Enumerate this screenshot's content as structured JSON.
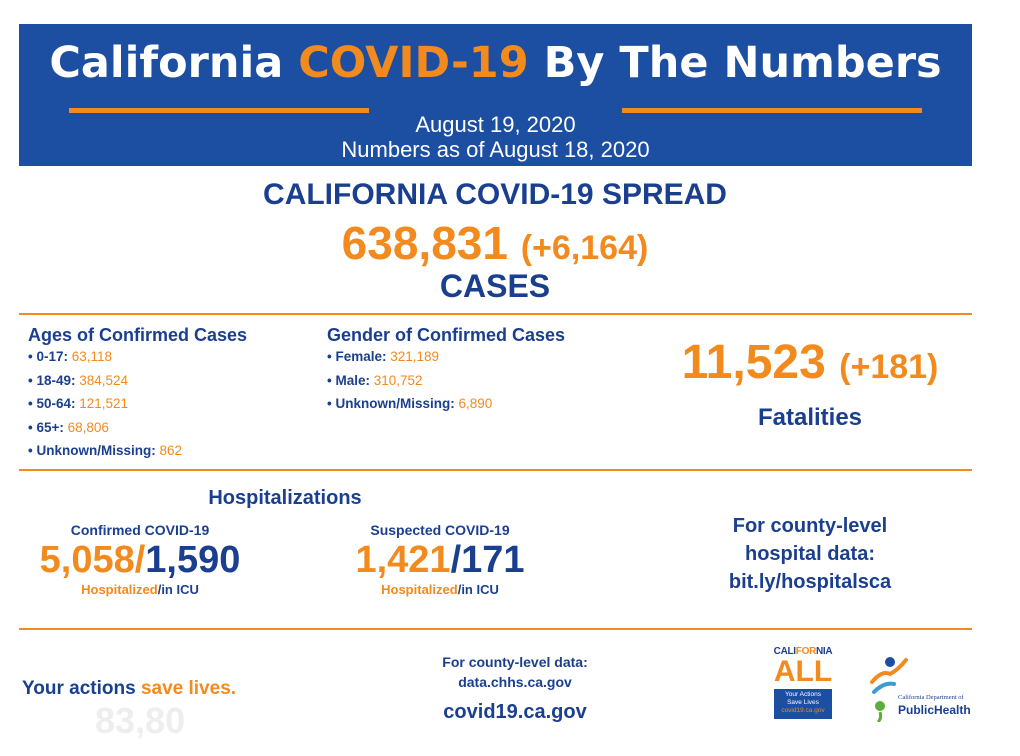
{
  "header": {
    "title_pre": "California ",
    "title_highlight": "COVID-19",
    "title_post": " By The Numbers",
    "date": "August 19, 2020",
    "as_of": "Numbers as of August 18, 2020"
  },
  "spread": {
    "title": "CALIFORNIA COVID-19 SPREAD",
    "cases": "638,831",
    "cases_delta": "(+6,164)",
    "cases_label": "CASES"
  },
  "ages": {
    "title": "Ages of Confirmed Cases",
    "items": [
      {
        "label": "• 0-17: ",
        "value": "63,118"
      },
      {
        "label": "• 18-49: ",
        "value": "384,524"
      },
      {
        "label": "• 50-64: ",
        "value": "121,521"
      },
      {
        "label": "• 65+: ",
        "value": "68,806"
      },
      {
        "label": "• Unknown/Missing: ",
        "value": "862"
      }
    ]
  },
  "gender": {
    "title": "Gender of Confirmed Cases",
    "items": [
      {
        "label": "• Female: ",
        "value": "321,189"
      },
      {
        "label": "• Male: ",
        "value": "310,752"
      },
      {
        "label": "• Unknown/Missing: ",
        "value": "6,890"
      }
    ]
  },
  "fatalities": {
    "number": "11,523",
    "delta": "(+181)",
    "label": "Fatalities"
  },
  "hospitalizations": {
    "title": "Hospitalizations",
    "confirmed": {
      "label": "Confirmed COVID-19",
      "hospitalized": "5,058",
      "slash": "/",
      "icu": "1,590",
      "foot_hosp": "Hospitalized",
      "foot_icu": "/in ICU"
    },
    "suspected": {
      "label": "Suspected COVID-19",
      "hospitalized": "1,421",
      "slash": "/",
      "icu": "171",
      "foot_hosp": "Hospitalized",
      "foot_icu": "/in ICU"
    }
  },
  "county_hospital": {
    "line1": "For county-level",
    "line2": "hospital data:",
    "line3": "bit.ly/hospitalsca"
  },
  "footer": {
    "actions_pre": "Your actions ",
    "actions_highlight": "save lives.",
    "ghost_text": "83,80",
    "county_data_line1": "For county-level data:",
    "county_data_line2": "data.chhs.ca.gov",
    "covid_link": "covid19.ca.gov"
  },
  "logos": {
    "ca_all_top_pre": "CALI",
    "ca_all_top_highlight": "FOR",
    "ca_all_top_post": "NIA",
    "ca_all_main": "ALL",
    "ca_all_box_line1": "Your Actions",
    "ca_all_box_line2": "Save Lives",
    "ca_all_box_line3": "covid19.ca.gov",
    "cdph_dept": "California Department of",
    "cdph_name": "PublicHealth"
  },
  "colors": {
    "brand_blue": "#1c4ea1",
    "text_blue": "#1b3f8f",
    "accent_orange": "#f28a1e"
  }
}
